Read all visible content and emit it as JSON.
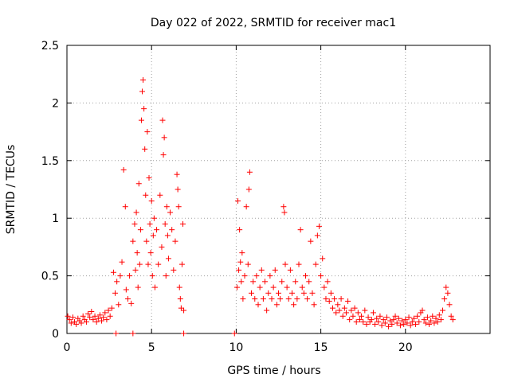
{
  "chart_data": {
    "type": "scatter",
    "title": "Day 022 of 2022, SRMTID for receiver mac1",
    "xlabel": "GPS time / hours",
    "ylabel": "SRMTID / TECUs",
    "xlim": [
      0,
      25
    ],
    "ylim": [
      0,
      2.5
    ],
    "xticks": [
      0,
      5,
      10,
      15,
      20
    ],
    "yticks": [
      0,
      0.5,
      1,
      1.5,
      2,
      2.5
    ],
    "xtick_labels": [
      "0",
      "5",
      "10",
      "15",
      "20"
    ],
    "ytick_labels": [
      "0",
      "0.5",
      "1",
      "1.5",
      "2",
      "2.5"
    ],
    "grid": true,
    "marker": "+",
    "marker_color": "#ff0000",
    "series": [
      {
        "name": "SRMTID",
        "points": [
          [
            0.05,
            0.15
          ],
          [
            0.15,
            0.12
          ],
          [
            0.25,
            0.09
          ],
          [
            0.35,
            0.14
          ],
          [
            0.45,
            0.1
          ],
          [
            0.55,
            0.08
          ],
          [
            0.65,
            0.13
          ],
          [
            0.75,
            0.11
          ],
          [
            0.85,
            0.09
          ],
          [
            0.95,
            0.15
          ],
          [
            1.05,
            0.12
          ],
          [
            1.15,
            0.1
          ],
          [
            1.25,
            0.17
          ],
          [
            1.35,
            0.14
          ],
          [
            1.45,
            0.19
          ],
          [
            1.55,
            0.12
          ],
          [
            1.65,
            0.15
          ],
          [
            1.75,
            0.1
          ],
          [
            1.85,
            0.13
          ],
          [
            1.95,
            0.16
          ],
          [
            2.05,
            0.11
          ],
          [
            2.15,
            0.14
          ],
          [
            2.25,
            0.18
          ],
          [
            2.35,
            0.12
          ],
          [
            2.45,
            0.2
          ],
          [
            2.55,
            0.15
          ],
          [
            2.65,
            0.22
          ],
          [
            2.75,
            0.53
          ],
          [
            2.85,
            0.35
          ],
          [
            2.95,
            0.45
          ],
          [
            3.05,
            0.25
          ],
          [
            3.15,
            0.5
          ],
          [
            3.25,
            0.62
          ],
          [
            3.35,
            1.42
          ],
          [
            3.45,
            1.1
          ],
          [
            3.5,
            0.38
          ],
          [
            3.6,
            0.3
          ],
          [
            3.7,
            0.5
          ],
          [
            3.8,
            0.26
          ],
          [
            3.9,
            0.8
          ],
          [
            4.0,
            0.95
          ],
          [
            4.05,
            0.55
          ],
          [
            4.1,
            1.05
          ],
          [
            4.15,
            0.7
          ],
          [
            4.2,
            0.4
          ],
          [
            4.25,
            1.3
          ],
          [
            4.3,
            0.6
          ],
          [
            4.35,
            0.9
          ],
          [
            4.4,
            1.85
          ],
          [
            4.45,
            2.1
          ],
          [
            4.5,
            2.2
          ],
          [
            4.55,
            1.95
          ],
          [
            4.6,
            1.6
          ],
          [
            4.65,
            1.2
          ],
          [
            4.7,
            0.8
          ],
          [
            4.75,
            1.75
          ],
          [
            4.8,
            0.6
          ],
          [
            4.85,
            1.35
          ],
          [
            4.9,
            0.95
          ],
          [
            4.95,
            0.7
          ],
          [
            5.0,
            1.15
          ],
          [
            5.05,
            0.5
          ],
          [
            5.1,
            0.85
          ],
          [
            5.15,
            1.0
          ],
          [
            5.2,
            0.4
          ],
          [
            5.3,
            0.9
          ],
          [
            5.4,
            0.6
          ],
          [
            5.5,
            1.2
          ],
          [
            5.6,
            0.75
          ],
          [
            5.65,
            1.85
          ],
          [
            5.7,
            1.55
          ],
          [
            5.75,
            1.7
          ],
          [
            5.8,
            0.95
          ],
          [
            5.85,
            0.5
          ],
          [
            5.9,
            1.1
          ],
          [
            5.95,
            0.85
          ],
          [
            6.0,
            0.65
          ],
          [
            6.1,
            1.05
          ],
          [
            6.2,
            0.9
          ],
          [
            6.3,
            0.55
          ],
          [
            6.4,
            0.8
          ],
          [
            6.5,
            1.38
          ],
          [
            6.55,
            1.25
          ],
          [
            6.6,
            1.1
          ],
          [
            6.65,
            0.4
          ],
          [
            6.7,
            0.3
          ],
          [
            6.75,
            0.22
          ],
          [
            6.8,
            0.6
          ],
          [
            6.85,
            0.95
          ],
          [
            6.9,
            0.2
          ],
          [
            10.05,
            0.4
          ],
          [
            10.1,
            1.15
          ],
          [
            10.15,
            0.55
          ],
          [
            10.2,
            0.9
          ],
          [
            10.25,
            0.62
          ],
          [
            10.3,
            0.45
          ],
          [
            10.35,
            0.7
          ],
          [
            10.4,
            0.3
          ],
          [
            10.5,
            0.5
          ],
          [
            10.6,
            1.1
          ],
          [
            10.7,
            0.6
          ],
          [
            10.75,
            1.25
          ],
          [
            10.8,
            1.4
          ],
          [
            10.9,
            0.35
          ],
          [
            11.0,
            0.45
          ],
          [
            11.1,
            0.3
          ],
          [
            11.2,
            0.5
          ],
          [
            11.3,
            0.25
          ],
          [
            11.4,
            0.4
          ],
          [
            11.5,
            0.55
          ],
          [
            11.6,
            0.3
          ],
          [
            11.7,
            0.45
          ],
          [
            11.8,
            0.2
          ],
          [
            11.9,
            0.35
          ],
          [
            12.0,
            0.5
          ],
          [
            12.1,
            0.3
          ],
          [
            12.2,
            0.4
          ],
          [
            12.3,
            0.55
          ],
          [
            12.4,
            0.25
          ],
          [
            12.5,
            0.35
          ],
          [
            12.6,
            0.3
          ],
          [
            12.7,
            0.45
          ],
          [
            12.8,
            1.1
          ],
          [
            12.85,
            1.05
          ],
          [
            12.9,
            0.6
          ],
          [
            13.0,
            0.4
          ],
          [
            13.1,
            0.3
          ],
          [
            13.2,
            0.55
          ],
          [
            13.3,
            0.35
          ],
          [
            13.4,
            0.25
          ],
          [
            13.5,
            0.45
          ],
          [
            13.6,
            0.3
          ],
          [
            13.7,
            0.6
          ],
          [
            13.8,
            0.9
          ],
          [
            13.9,
            0.4
          ],
          [
            14.0,
            0.35
          ],
          [
            14.1,
            0.5
          ],
          [
            14.2,
            0.3
          ],
          [
            14.3,
            0.45
          ],
          [
            14.4,
            0.8
          ],
          [
            14.5,
            0.35
          ],
          [
            14.6,
            0.25
          ],
          [
            14.7,
            0.6
          ],
          [
            14.8,
            0.85
          ],
          [
            14.9,
            0.93
          ],
          [
            15.0,
            0.5
          ],
          [
            15.1,
            0.65
          ],
          [
            15.2,
            0.4
          ],
          [
            15.3,
            0.3
          ],
          [
            15.4,
            0.45
          ],
          [
            15.5,
            0.28
          ],
          [
            15.6,
            0.35
          ],
          [
            15.7,
            0.22
          ],
          [
            15.8,
            0.3
          ],
          [
            15.9,
            0.18
          ],
          [
            16.0,
            0.25
          ],
          [
            16.1,
            0.2
          ],
          [
            16.2,
            0.3
          ],
          [
            16.3,
            0.15
          ],
          [
            16.4,
            0.22
          ],
          [
            16.5,
            0.18
          ],
          [
            16.6,
            0.28
          ],
          [
            16.7,
            0.12
          ],
          [
            16.8,
            0.2
          ],
          [
            16.9,
            0.15
          ],
          [
            17.0,
            0.22
          ],
          [
            17.1,
            0.1
          ],
          [
            17.2,
            0.18
          ],
          [
            17.3,
            0.12
          ],
          [
            17.4,
            0.15
          ],
          [
            17.5,
            0.1
          ],
          [
            17.6,
            0.2
          ],
          [
            17.7,
            0.08
          ],
          [
            17.8,
            0.14
          ],
          [
            17.9,
            0.1
          ],
          [
            18.0,
            0.12
          ],
          [
            18.1,
            0.18
          ],
          [
            18.2,
            0.08
          ],
          [
            18.3,
            0.13
          ],
          [
            18.4,
            0.1
          ],
          [
            18.5,
            0.15
          ],
          [
            18.6,
            0.07
          ],
          [
            18.7,
            0.12
          ],
          [
            18.8,
            0.09
          ],
          [
            18.9,
            0.14
          ],
          [
            19.0,
            0.06
          ],
          [
            19.1,
            0.11
          ],
          [
            19.2,
            0.08
          ],
          [
            19.3,
            0.12
          ],
          [
            19.4,
            0.15
          ],
          [
            19.5,
            0.09
          ],
          [
            19.6,
            0.13
          ],
          [
            19.7,
            0.07
          ],
          [
            19.8,
            0.11
          ],
          [
            19.9,
            0.08
          ],
          [
            20.0,
            0.12
          ],
          [
            20.1,
            0.09
          ],
          [
            20.2,
            0.14
          ],
          [
            20.3,
            0.07
          ],
          [
            20.4,
            0.1
          ],
          [
            20.5,
            0.13
          ],
          [
            20.6,
            0.08
          ],
          [
            20.7,
            0.15
          ],
          [
            20.8,
            0.1
          ],
          [
            20.9,
            0.18
          ],
          [
            21.0,
            0.2
          ],
          [
            21.1,
            0.12
          ],
          [
            21.2,
            0.09
          ],
          [
            21.3,
            0.14
          ],
          [
            21.4,
            0.08
          ],
          [
            21.5,
            0.11
          ],
          [
            21.6,
            0.15
          ],
          [
            21.7,
            0.09
          ],
          [
            21.8,
            0.13
          ],
          [
            21.9,
            0.1
          ],
          [
            22.0,
            0.16
          ],
          [
            22.1,
            0.12
          ],
          [
            22.2,
            0.2
          ],
          [
            22.3,
            0.3
          ],
          [
            22.4,
            0.4
          ],
          [
            22.5,
            0.35
          ],
          [
            22.6,
            0.25
          ],
          [
            22.7,
            0.15
          ],
          [
            22.8,
            0.12
          ],
          [
            2.9,
            0.0
          ],
          [
            3.9,
            0.0
          ],
          [
            6.9,
            0.0
          ],
          [
            9.9,
            0.0
          ]
        ]
      }
    ]
  }
}
